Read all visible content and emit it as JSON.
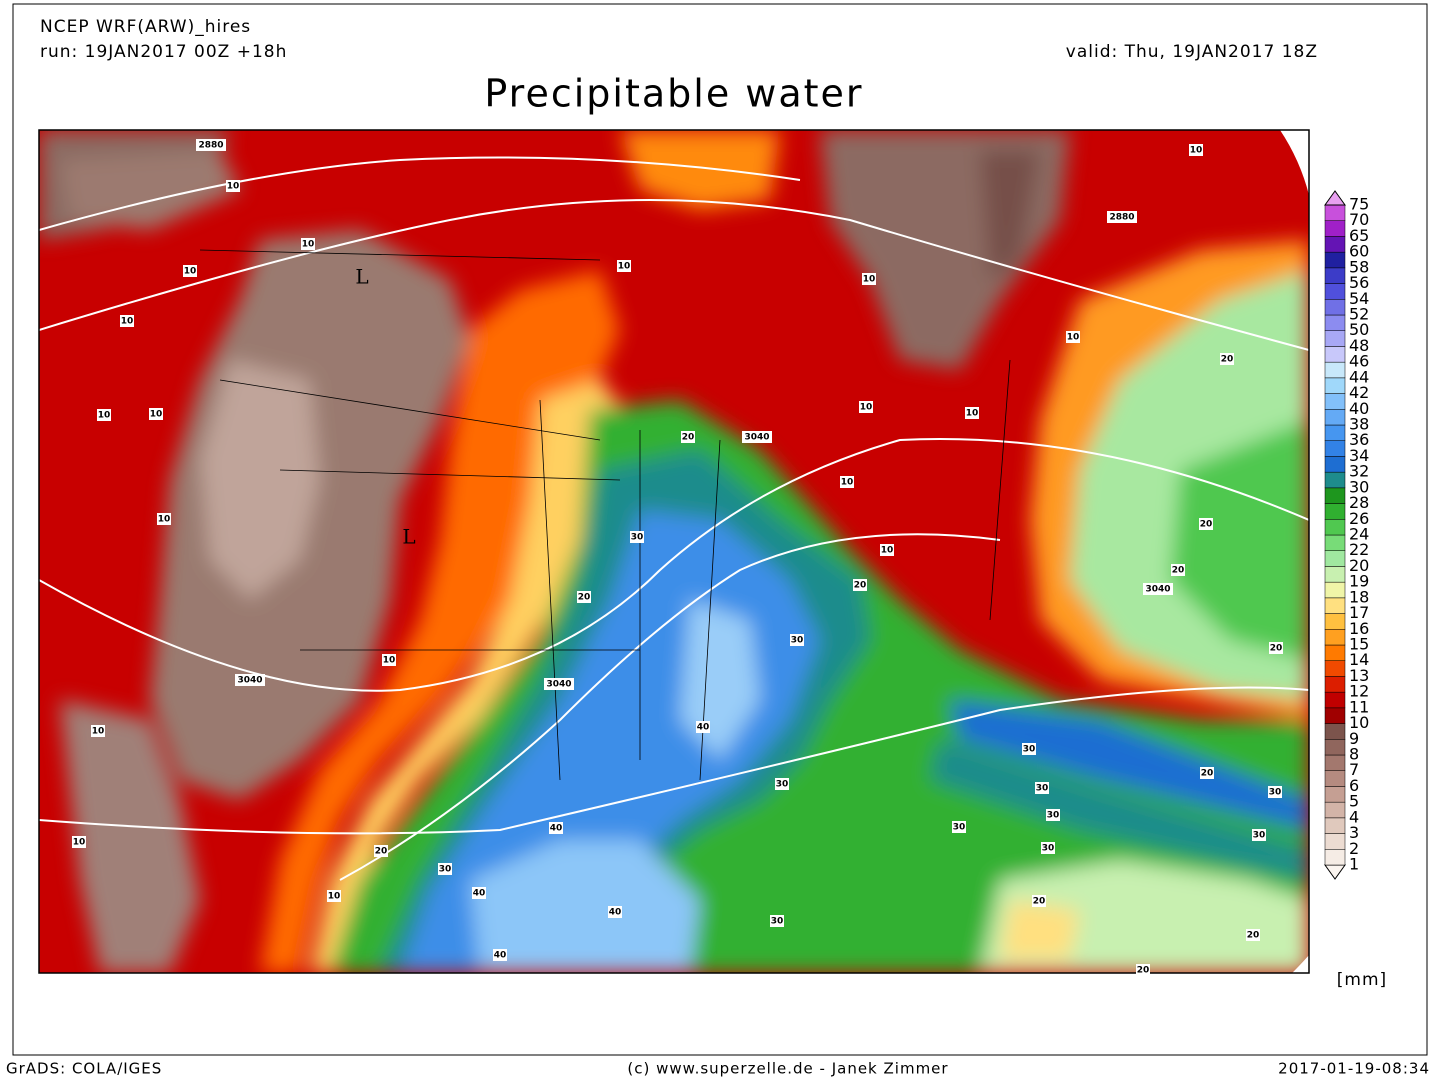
{
  "header": {
    "model": "NCEP WRF(ARW)_hires",
    "run": "run: 19JAN2017 00Z +18h",
    "valid": "valid: Thu, 19JAN2017 18Z",
    "title": "Precipitable water"
  },
  "legend": {
    "levels": [
      1,
      2,
      3,
      4,
      5,
      6,
      7,
      8,
      9,
      10,
      11,
      12,
      13,
      14,
      15,
      16,
      17,
      18,
      19,
      20,
      22,
      24,
      26,
      28,
      30,
      32,
      34,
      36,
      38,
      40,
      42,
      44,
      46,
      48,
      50,
      52,
      54,
      56,
      58,
      60,
      65,
      70,
      75
    ],
    "colors": [
      "#fbf5f0",
      "#f5ece5",
      "#ecdcd2",
      "#e0c9bd",
      "#d3b4a8",
      "#c59f93",
      "#b58b80",
      "#a3786e",
      "#90665d",
      "#7c544c",
      "#a00000",
      "#c00000",
      "#dc1e00",
      "#f04a00",
      "#ff7a00",
      "#ffa020",
      "#ffc040",
      "#ffe080",
      "#f0f5a8",
      "#c8f0b0",
      "#a0e8a0",
      "#78dc78",
      "#50c850",
      "#30b030",
      "#1e961e",
      "#1e8c8c",
      "#1e6ed2",
      "#3282e6",
      "#4696f0",
      "#64aaf5",
      "#82c0fa",
      "#a0d8fa",
      "#c8e8fa",
      "#c8c8fa",
      "#a8a8f5",
      "#8c8cf0",
      "#7070e6",
      "#5050dc",
      "#3c3cc8",
      "#2020a0",
      "#6414b4",
      "#a020c8",
      "#c850dc",
      "#e8a0f0"
    ],
    "unit": "[mm]"
  },
  "map_labels": [
    "2880",
    "10",
    "10",
    "10",
    "10",
    "10",
    "10",
    "10",
    "L",
    "L",
    "10",
    "10",
    "10",
    "10",
    "2880",
    "10",
    "10",
    "20",
    "3040",
    "10",
    "10",
    "20",
    "3040",
    "20",
    "20",
    "20",
    "20",
    "30",
    "20",
    "10",
    "3040",
    "3040",
    "30",
    "40",
    "10",
    "30",
    "20",
    "30",
    "30",
    "30",
    "30",
    "30",
    "30",
    "30",
    "40",
    "20",
    "30",
    "40",
    "10",
    "10",
    "30",
    "40",
    "20",
    "20",
    "40",
    "20"
  ],
  "footer": {
    "left": "GrADS: COLA/IGES",
    "center": "(c) www.superzelle.de - Janek Zimmer",
    "right": "2017-01-19-08:34"
  }
}
